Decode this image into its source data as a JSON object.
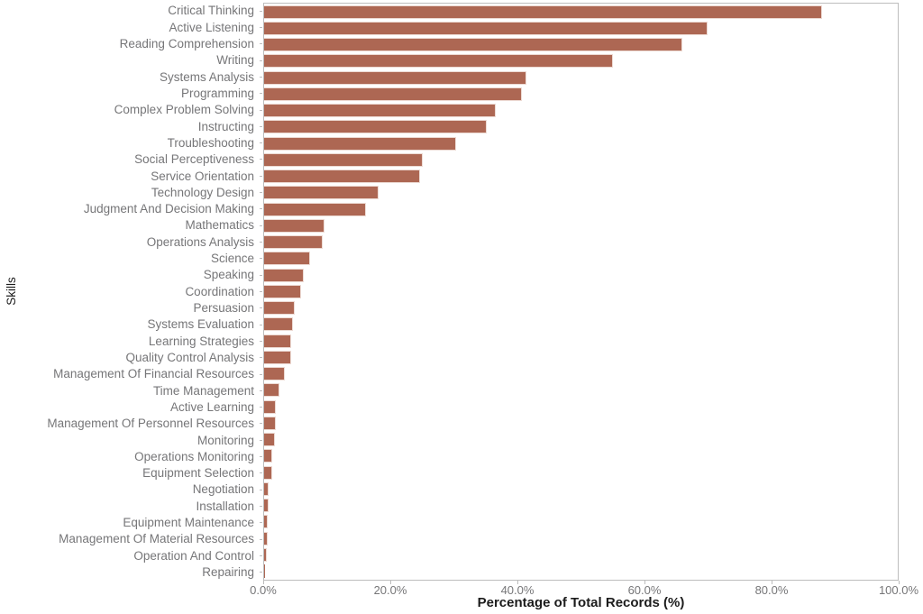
{
  "chart_data": {
    "type": "bar",
    "orientation": "horizontal",
    "title": "",
    "xlabel": "Percentage of Total Records (%)",
    "ylabel": "Skills",
    "xlim": [
      0,
      100
    ],
    "grid": false,
    "legend_position": "none",
    "bar_color": "#ad6753",
    "bar_edge_color": "#ecd9d2",
    "x_tick_labels": [
      "0.0%",
      "20.0%",
      "40.0%",
      "60.0%",
      "80.0%",
      "100.0%"
    ],
    "x_tick_values": [
      0,
      20,
      40,
      60,
      80,
      100
    ],
    "categories": [
      "Critical Thinking",
      "Active Listening",
      "Reading Comprehension",
      "Writing",
      "Systems Analysis",
      "Programming",
      "Complex Problem Solving",
      "Instructing",
      "Troubleshooting",
      "Social Perceptiveness",
      "Service Orientation",
      "Technology Design",
      "Judgment And Decision Making",
      "Mathematics",
      "Operations Analysis",
      "Science",
      "Speaking",
      "Coordination",
      "Persuasion",
      "Systems Evaluation",
      "Learning Strategies",
      "Quality Control Analysis",
      "Management Of Financial Resources",
      "Time Management",
      "Active Learning",
      "Management Of Personnel Resources",
      "Monitoring",
      "Operations Monitoring",
      "Equipment Selection",
      "Negotiation",
      "Installation",
      "Equipment Maintenance",
      "Management Of Material Resources",
      "Operation And Control",
      "Repairing"
    ],
    "values": [
      88.0,
      70.0,
      66.0,
      55.0,
      41.4,
      40.7,
      36.6,
      35.2,
      30.3,
      25.1,
      24.6,
      18.0,
      16.1,
      9.5,
      9.2,
      7.3,
      6.2,
      5.8,
      4.8,
      4.6,
      4.3,
      4.2,
      3.3,
      2.4,
      1.9,
      1.8,
      1.7,
      1.3,
      1.25,
      0.7,
      0.65,
      0.55,
      0.5,
      0.45,
      0.05
    ]
  }
}
